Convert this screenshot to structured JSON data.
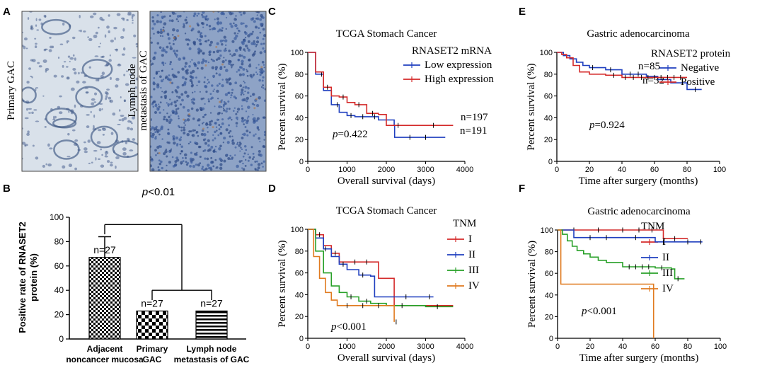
{
  "panel_labels": {
    "A": "A",
    "B": "B",
    "C": "C",
    "D": "D",
    "E": "E",
    "F": "F"
  },
  "panel_a": {
    "images": [
      {
        "label": "Primary GAC",
        "stain": "light"
      },
      {
        "label_line1": "Lymph node",
        "label_line2": "metastasis of GAC",
        "stain": "dense"
      }
    ]
  },
  "chart_data": [
    {
      "id": "B",
      "type": "bar",
      "title_prefix": "p",
      "title_suffix": "<0.01",
      "ylabel_line1": "Positive rate of  RNASET2",
      "ylabel_line2": "protein (%)",
      "ylim": [
        0,
        100
      ],
      "yticks": [
        0,
        20,
        40,
        60,
        80,
        100
      ],
      "categories": [
        {
          "line1": "Adjacent",
          "line2": "noncancer mucosa",
          "pattern": "checker"
        },
        {
          "line1": "Primary",
          "line2": "GAC",
          "pattern": "checker-bold"
        },
        {
          "line1": "Lymph node",
          "line2": "metastasis of GAC",
          "pattern": "stripes"
        }
      ],
      "values": [
        67,
        23,
        23
      ],
      "error": [
        17,
        0,
        0
      ],
      "data_labels": [
        "n=27",
        "n=27",
        "n=27"
      ]
    },
    {
      "id": "C",
      "type": "line",
      "title": "TCGA Stomach Cancer",
      "xlabel": "Overall survival (days)",
      "ylabel": "Percent survival (%)",
      "xlim": [
        0,
        4000
      ],
      "ylim": [
        0,
        100
      ],
      "xticks": [
        0,
        1000,
        2000,
        3000,
        4000
      ],
      "yticks": [
        0,
        20,
        40,
        60,
        80,
        100
      ],
      "legend_title": "RNASET2 mRNA",
      "pvalue_prefix": "p",
      "pvalue_suffix": "=0.422",
      "series": [
        {
          "name": "Low expression",
          "color": "#1f3fbf",
          "n_label": "n=191",
          "x": [
            0,
            200,
            400,
            600,
            800,
            1000,
            1200,
            1500,
            1800,
            2200,
            2210,
            3500
          ],
          "y": [
            100,
            80,
            65,
            52,
            45,
            42,
            41,
            41,
            38,
            33,
            22,
            22
          ],
          "censor": [
            350,
            750,
            1100,
            1400,
            1700,
            2600,
            3000
          ]
        },
        {
          "name": "High expression",
          "color": "#d42a2a",
          "n_label": "n=197",
          "x": [
            0,
            200,
            400,
            600,
            800,
            1000,
            1200,
            1500,
            1800,
            2000,
            2800,
            3700
          ],
          "y": [
            100,
            82,
            68,
            60,
            59,
            54,
            52,
            44,
            43,
            33,
            33,
            33
          ],
          "censor": [
            500,
            900,
            1300,
            1650,
            2300,
            3200
          ]
        }
      ]
    },
    {
      "id": "D",
      "type": "line",
      "title": "TCGA Stomach Cancer",
      "xlabel": "Overall survival (days)",
      "ylabel": "Percent survival (%)",
      "xlim": [
        0,
        4000
      ],
      "ylim": [
        0,
        100
      ],
      "xticks": [
        0,
        1000,
        2000,
        3000,
        4000
      ],
      "yticks": [
        0,
        20,
        40,
        60,
        80,
        100
      ],
      "legend_title": "TNM",
      "pvalue_prefix": "p",
      "pvalue_suffix": "<0.001",
      "series": [
        {
          "name": "I",
          "color": "#d42a2a",
          "x": [
            0,
            200,
            400,
            600,
            800,
            1000,
            1700,
            1800,
            2100,
            2200,
            3700
          ],
          "y": [
            100,
            95,
            85,
            78,
            70,
            70,
            70,
            55,
            55,
            30,
            30
          ],
          "censor": [
            300,
            700,
            1200,
            1500
          ]
        },
        {
          "name": "II",
          "color": "#1f3fbf",
          "x": [
            0,
            200,
            400,
            600,
            800,
            1000,
            1300,
            1600,
            1700,
            2200,
            3200
          ],
          "y": [
            100,
            92,
            82,
            75,
            68,
            63,
            58,
            57,
            38,
            38,
            38
          ],
          "censor": [
            450,
            900,
            1400,
            2500,
            3100
          ]
        },
        {
          "name": "III",
          "color": "#28a028",
          "x": [
            0,
            200,
            400,
            600,
            800,
            1000,
            1300,
            1600,
            2000,
            3000,
            3700
          ],
          "y": [
            100,
            80,
            60,
            48,
            42,
            38,
            34,
            32,
            30,
            29,
            29
          ],
          "censor": [
            1100,
            1500,
            2400,
            3300
          ]
        },
        {
          "name": "IV",
          "color": "#e07a1f",
          "x": [
            0,
            150,
            300,
            450,
            600,
            750,
            900,
            2100,
            2200
          ],
          "y": [
            100,
            75,
            55,
            42,
            35,
            30,
            30,
            30,
            15
          ],
          "censor": [
            1000,
            1400,
            1800,
            2250
          ]
        }
      ]
    },
    {
      "id": "E",
      "type": "line",
      "title": "Gastric adenocarcinoma",
      "xlabel": "Time after surgery (months)",
      "ylabel": "Percent survival (%)",
      "xlim": [
        0,
        100
      ],
      "ylim": [
        0,
        100
      ],
      "xticks": [
        0,
        20,
        40,
        60,
        80,
        100
      ],
      "yticks": [
        0,
        20,
        40,
        60,
        80,
        100
      ],
      "legend_title": "RNASET2 protein",
      "pvalue_prefix": "p",
      "pvalue_suffix": "=0.924",
      "series": [
        {
          "name": "Negative",
          "color": "#1f3fbf",
          "n_label": "n=32",
          "x": [
            0,
            4,
            8,
            12,
            16,
            20,
            30,
            40,
            55,
            62,
            70,
            80,
            89
          ],
          "y": [
            100,
            97,
            94,
            91,
            88,
            86,
            84,
            80,
            78,
            75,
            72,
            66,
            66
          ],
          "censor": [
            22,
            33,
            45,
            50,
            85
          ]
        },
        {
          "name": "Positive",
          "color": "#d42a2a",
          "n_label": "n=85",
          "x": [
            0,
            3,
            6,
            10,
            14,
            20,
            30,
            40,
            80
          ],
          "y": [
            100,
            98,
            95,
            88,
            82,
            80,
            79,
            77,
            77
          ],
          "censor": [
            35,
            42,
            47,
            52,
            56,
            60,
            64,
            68,
            72,
            76
          ]
        }
      ]
    },
    {
      "id": "F",
      "type": "line",
      "title": "Gastric adenocarcinoma",
      "xlabel": "Time after surgery (months)",
      "ylabel": "Percent survival (%)",
      "xlim": [
        0,
        100
      ],
      "ylim": [
        0,
        100
      ],
      "xticks": [
        0,
        20,
        40,
        60,
        80,
        100
      ],
      "yticks": [
        0,
        20,
        40,
        60,
        80,
        100
      ],
      "legend_title": "TNM",
      "pvalue_prefix": "p",
      "pvalue_suffix": "<0.001",
      "series": [
        {
          "name": "I",
          "color": "#d42a2a",
          "x": [
            0,
            65,
            65,
            80
          ],
          "y": [
            100,
            100,
            92,
            92
          ],
          "censor": [
            10,
            25,
            40,
            50,
            58,
            72
          ]
        },
        {
          "name": "II",
          "color": "#1f3fbf",
          "x": [
            0,
            10,
            10,
            60,
            60,
            89
          ],
          "y": [
            100,
            100,
            93,
            93,
            89,
            89
          ],
          "censor": [
            20,
            30,
            48,
            65,
            80,
            88
          ]
        },
        {
          "name": "III",
          "color": "#28a028",
          "x": [
            0,
            3,
            6,
            9,
            12,
            16,
            20,
            25,
            30,
            40,
            60,
            70,
            72,
            78
          ],
          "y": [
            100,
            96,
            90,
            85,
            81,
            78,
            75,
            72,
            70,
            66,
            65,
            64,
            55,
            55
          ],
          "censor": [
            44,
            48,
            52,
            56,
            64,
            74
          ]
        },
        {
          "name": "IV",
          "color": "#e07a1f",
          "x": [
            0,
            2,
            2,
            59,
            59
          ],
          "y": [
            100,
            100,
            50,
            50,
            0
          ],
          "censor": []
        }
      ]
    }
  ]
}
